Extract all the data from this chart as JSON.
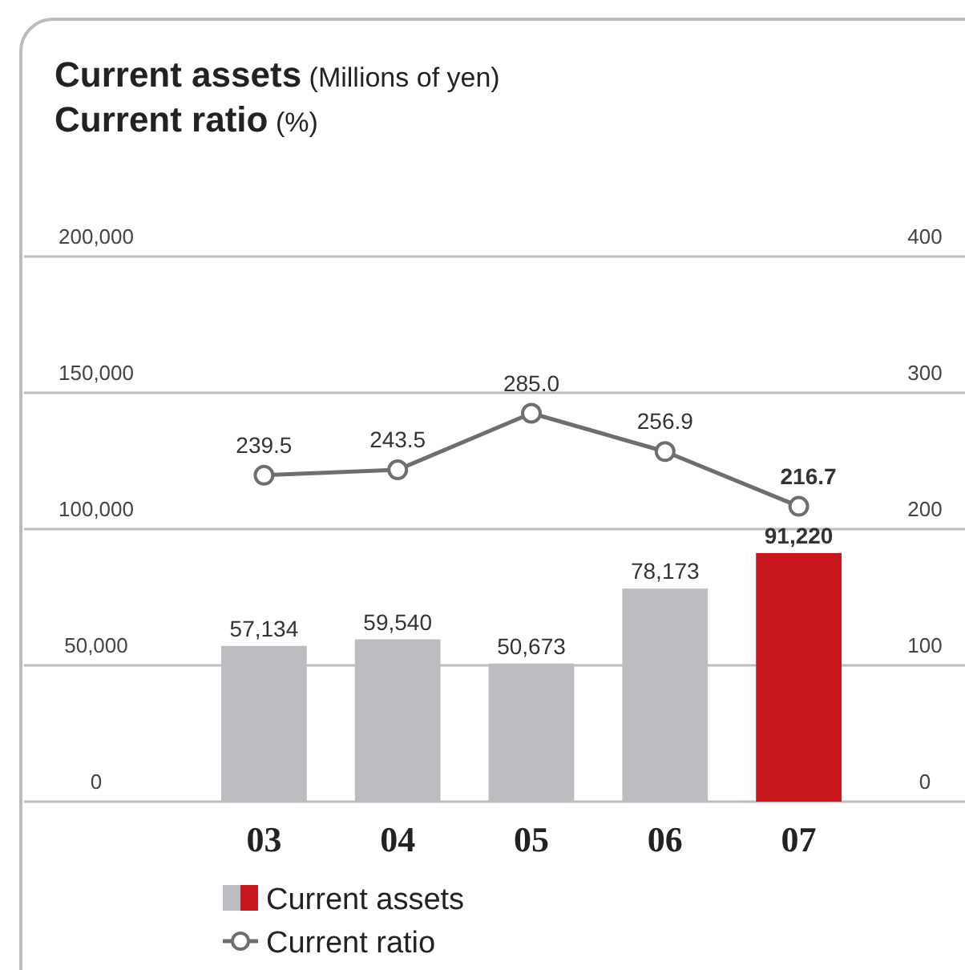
{
  "chart_data": {
    "type": "bar",
    "title": "Current assets (Millions of yen)",
    "subtitle": "Current ratio (%)",
    "categories": [
      "03",
      "04",
      "05",
      "06",
      "07"
    ],
    "series": [
      {
        "name": "Current assets",
        "colors": [
          "#bbbcc0",
          "#bbbcc0",
          "#bbbcc0",
          "#bbbcc0",
          "#c8161d"
        ],
        "values": [
          57134,
          59540,
          50673,
          78173,
          91220
        ],
        "value_labels": [
          "57,134",
          "59,540",
          "50,673",
          "78,173",
          "91,220"
        ]
      },
      {
        "name": "Current ratio",
        "type": "line",
        "axis": "y2",
        "color": "#6d6e70",
        "marker": "circle",
        "values": [
          239.5,
          243.5,
          285.0,
          256.9,
          216.7
        ],
        "value_labels": [
          "239.5",
          "243.5",
          "285.0",
          "256.9",
          "216.7"
        ]
      }
    ],
    "ylim": [
      0,
      200000
    ],
    "yticks": [
      0,
      {
        "value": 50000,
        "label": "50,000"
      },
      {
        "value": 100000,
        "label": "100,000"
      },
      {
        "value": 150000,
        "label": "150,000"
      },
      {
        "value": 200000,
        "label": "200,000"
      }
    ],
    "y2lim": [
      0,
      400
    ],
    "y2ticks": [
      0,
      100,
      200,
      300,
      400
    ],
    "grid": "y",
    "legend": "bottom"
  }
}
